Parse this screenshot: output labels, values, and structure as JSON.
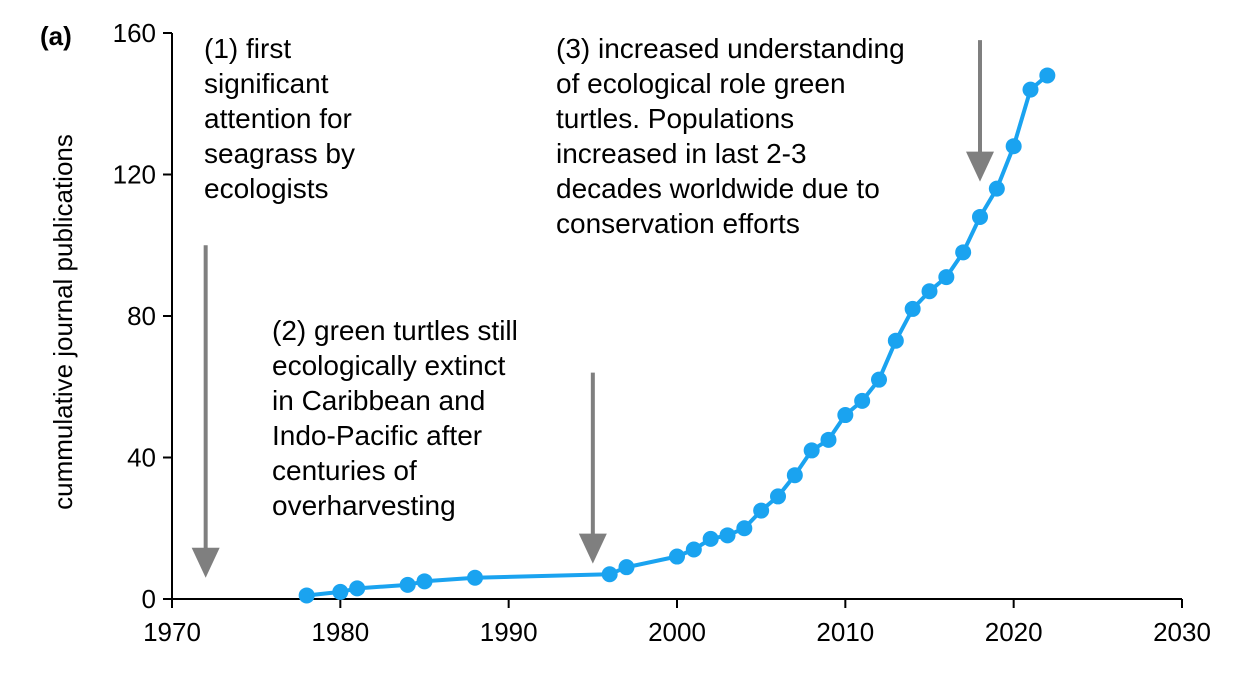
{
  "chart_data": {
    "type": "line",
    "panel_label": "(a)",
    "title": "",
    "xlabel": "",
    "ylabel": "cummulative journal publications",
    "xlim": [
      1970,
      2030
    ],
    "ylim": [
      0,
      160
    ],
    "x_ticks": [
      1970,
      1980,
      1990,
      2000,
      2010,
      2020,
      2030
    ],
    "y_ticks": [
      0,
      40,
      80,
      120,
      160
    ],
    "grid": false,
    "legend": "none",
    "series_color": "#1aa3f0",
    "annotation_arrow_color": "#7f7f7f",
    "series": [
      {
        "x": [
          1978,
          1980,
          1981,
          1984,
          1985,
          1988,
          1996,
          1997,
          2000,
          2001,
          2002,
          2003,
          2004,
          2005,
          2006,
          2007,
          2008,
          2009,
          2010,
          2011,
          2012,
          2013,
          2014,
          2015,
          2016,
          2017,
          2018,
          2019,
          2020,
          2021,
          2022
        ],
        "y": [
          1,
          2,
          3,
          4,
          5,
          6,
          7,
          9,
          12,
          14,
          17,
          18,
          20,
          25,
          29,
          35,
          42,
          45,
          52,
          56,
          62,
          73,
          82,
          87,
          91,
          98,
          108,
          116,
          128,
          144,
          148
        ]
      }
    ],
    "annotations": [
      {
        "lines": [
          "(1) first",
          "significant",
          "attention for",
          "seagrass by",
          "ecologists"
        ],
        "arrow_x": 1972,
        "arrow_from_y": 100,
        "arrow_to_y": 6
      },
      {
        "lines": [
          "(2) green turtles still",
          "ecologically extinct",
          "in Caribbean and",
          "Indo-Pacific after",
          "centuries of",
          "overharvesting"
        ],
        "arrow_x": 1995,
        "arrow_from_y": 64,
        "arrow_to_y": 10
      },
      {
        "lines": [
          "(3) increased understanding",
          "of ecological role green",
          "turtles. Populations",
          "increased in last 2-3",
          "decades worldwide due to",
          "conservation efforts"
        ],
        "arrow_x": 2018,
        "arrow_from_y": 158,
        "arrow_to_y": 118
      }
    ]
  }
}
